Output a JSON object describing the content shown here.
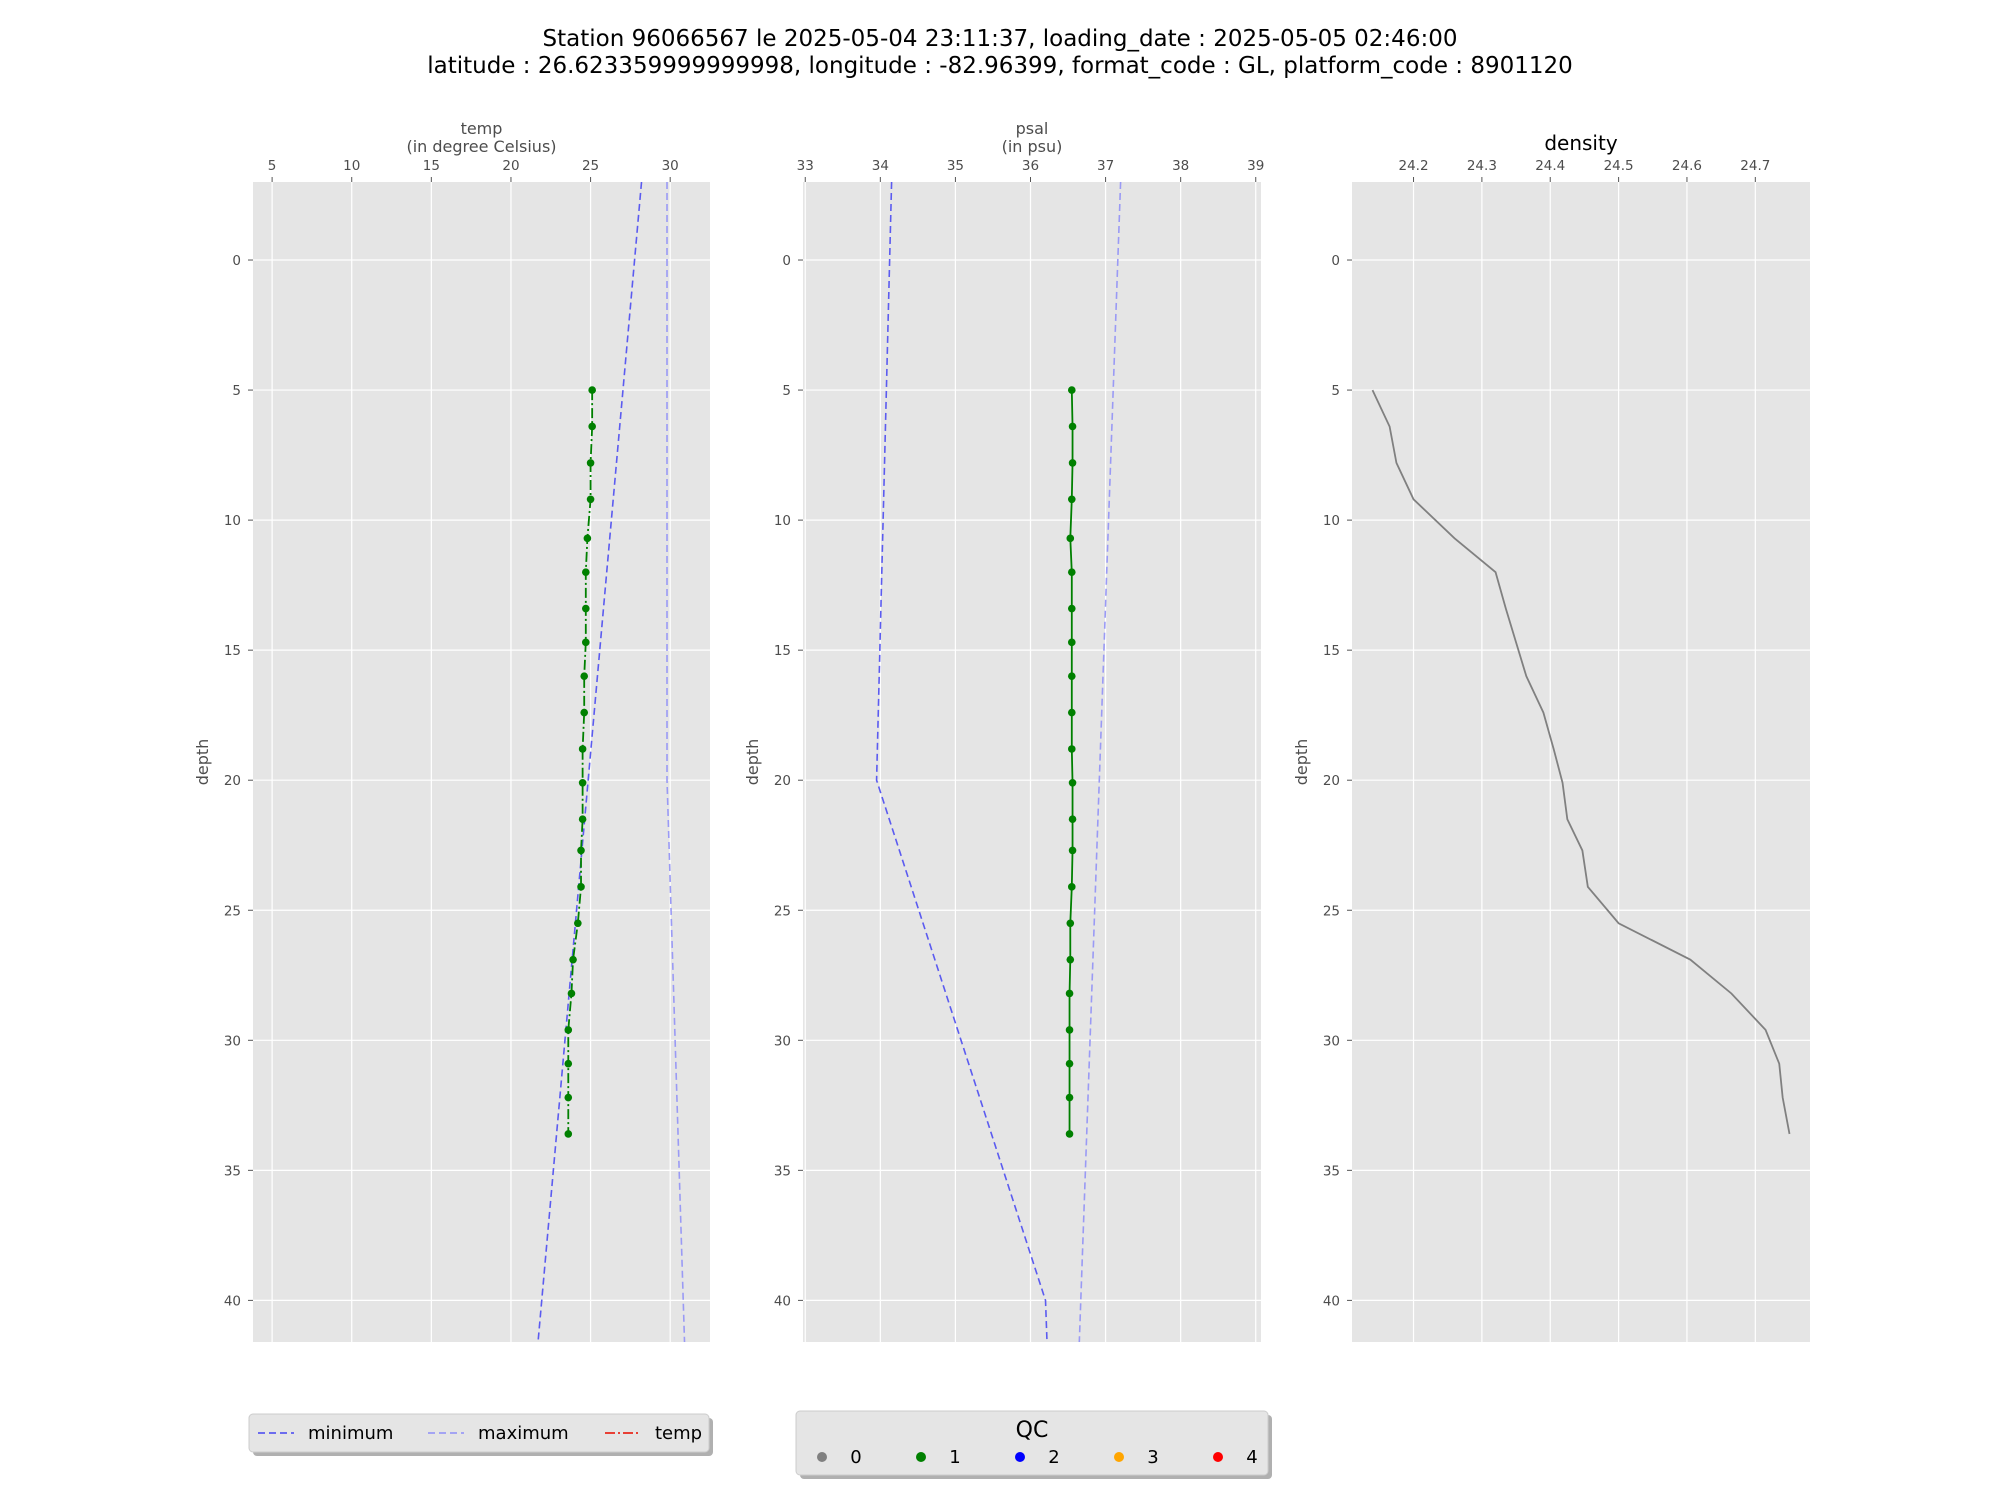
{
  "figure": {
    "title_line1": "Station 96066567 le 2025-05-04 23:11:37, loading_date : 2025-05-05 02:46:00",
    "title_line2": "latitude : 26.623359999999998, longitude : -82.96399, format_code : GL, platform_code : 8901120"
  },
  "colors": {
    "panel_bg": "#e5e5e5",
    "grid": "#ffffff",
    "minimum": "#5b5bf0",
    "maximum": "#9a9af5",
    "temp_line": "#e8281c",
    "qc0": "#808080",
    "qc1": "#008000",
    "qc2": "#0000ff",
    "qc3": "#ffa500",
    "qc4": "#ff0000",
    "density_line": "#808080"
  },
  "legend_lines": {
    "items": [
      {
        "label": "minimum",
        "style": "dashed",
        "color": "#5b5bf0"
      },
      {
        "label": "maximum",
        "style": "dashed",
        "color": "#9a9af5"
      },
      {
        "label": "temp",
        "style": "dashdot",
        "color": "#e8281c"
      }
    ]
  },
  "legend_qc": {
    "title": "QC",
    "items": [
      {
        "label": "0",
        "color": "#808080"
      },
      {
        "label": "1",
        "color": "#008000"
      },
      {
        "label": "2",
        "color": "#0000ff"
      },
      {
        "label": "3",
        "color": "#ffa500"
      },
      {
        "label": "4",
        "color": "#ff0000"
      }
    ]
  },
  "chart_data": [
    {
      "type": "line",
      "id": "temp",
      "xlabel": "temp\n(in degree Celsius)",
      "ylabel": "depth",
      "xlim": [
        3.8,
        32.5
      ],
      "ylim": [
        41.6,
        -3
      ],
      "y_inverted": true,
      "xticks": [
        5,
        10,
        15,
        20,
        25,
        30
      ],
      "yticks": [
        0,
        5,
        10,
        15,
        20,
        25,
        30,
        35,
        40
      ],
      "grid": true,
      "x_axis_position": "top",
      "series": [
        {
          "name": "minimum",
          "style": "dashed",
          "x": [
            28.2,
            21.7
          ],
          "y": [
            -3,
            41.6
          ]
        },
        {
          "name": "maximum",
          "style": "dashed",
          "x": [
            29.8,
            29.8,
            30.9
          ],
          "y": [
            -3,
            20,
            41.6
          ]
        },
        {
          "name": "temp",
          "style": "dashdot",
          "qc": 1,
          "depth": [
            5.0,
            6.4,
            7.8,
            9.2,
            10.7,
            12.0,
            13.4,
            14.7,
            16.0,
            17.4,
            18.8,
            20.1,
            21.5,
            22.7,
            24.1,
            25.5,
            26.9,
            28.2,
            29.6,
            30.9,
            32.2,
            33.6
          ],
          "values": [
            25.1,
            25.1,
            25.0,
            25.0,
            24.8,
            24.7,
            24.7,
            24.7,
            24.6,
            24.6,
            24.5,
            24.5,
            24.5,
            24.4,
            24.4,
            24.2,
            23.9,
            23.8,
            23.6,
            23.6,
            23.6,
            23.6
          ]
        }
      ]
    },
    {
      "type": "line",
      "id": "psal",
      "xlabel": "psal\n(in psu)",
      "ylabel": "depth",
      "xlim": [
        32.97,
        39.07
      ],
      "ylim": [
        41.6,
        -3
      ],
      "y_inverted": true,
      "xticks": [
        33,
        34,
        35,
        36,
        37,
        38,
        39
      ],
      "yticks": [
        0,
        5,
        10,
        15,
        20,
        25,
        30,
        35,
        40
      ],
      "grid": true,
      "x_axis_position": "top",
      "series": [
        {
          "name": "minimum",
          "style": "dashed",
          "x": [
            34.15,
            33.95,
            36.2,
            36.22
          ],
          "y": [
            -3,
            20,
            40,
            41.6
          ]
        },
        {
          "name": "maximum",
          "style": "dashed",
          "x": [
            37.2,
            36.65
          ],
          "y": [
            -3,
            41.6
          ]
        },
        {
          "name": "psal",
          "style": "solid",
          "qc": 1,
          "depth": [
            5.0,
            6.4,
            7.8,
            9.2,
            10.7,
            12.0,
            13.4,
            14.7,
            16.0,
            17.4,
            18.8,
            20.1,
            21.5,
            22.7,
            24.1,
            25.5,
            26.9,
            28.2,
            29.6,
            30.9,
            32.2,
            33.6
          ],
          "values": [
            36.55,
            36.56,
            36.56,
            36.55,
            36.53,
            36.55,
            36.55,
            36.55,
            36.55,
            36.55,
            36.55,
            36.56,
            36.56,
            36.56,
            36.55,
            36.53,
            36.53,
            36.52,
            36.52,
            36.52,
            36.52,
            36.52
          ]
        }
      ]
    },
    {
      "type": "line",
      "id": "density",
      "xlabel": "density",
      "ylabel": "depth",
      "xlim": [
        24.11,
        24.78
      ],
      "ylim": [
        41.6,
        -3
      ],
      "y_inverted": true,
      "xticks": [
        24.2,
        24.3,
        24.4,
        24.5,
        24.6,
        24.7
      ],
      "yticks": [
        0,
        5,
        10,
        15,
        20,
        25,
        30,
        35,
        40
      ],
      "grid": true,
      "x_axis_position": "top",
      "series": [
        {
          "name": "density",
          "style": "solid",
          "depth": [
            5.0,
            6.4,
            7.8,
            9.2,
            10.7,
            12.0,
            13.4,
            14.7,
            16.0,
            17.4,
            18.8,
            20.1,
            21.5,
            22.7,
            24.1,
            25.5,
            26.9,
            28.2,
            29.6,
            30.9,
            32.2,
            33.6
          ],
          "values": [
            24.14,
            24.165,
            24.175,
            24.2,
            24.26,
            24.32,
            24.335,
            24.35,
            24.365,
            24.39,
            24.405,
            24.418,
            24.425,
            24.447,
            24.455,
            24.5,
            24.605,
            24.665,
            24.715,
            24.735,
            24.74,
            24.75
          ]
        }
      ]
    }
  ]
}
